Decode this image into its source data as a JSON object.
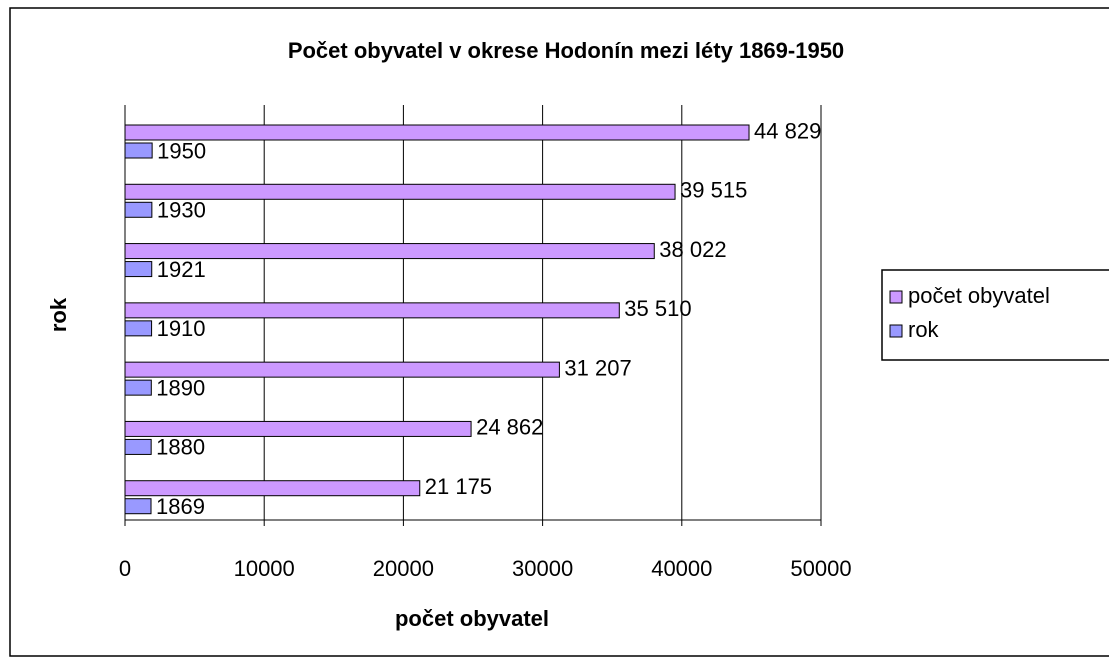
{
  "chart_data": {
    "type": "hbar",
    "title": "Počet obyvatel v okrese Hodonín mezi léty 1869-1950",
    "xlabel": "počet obyvatel",
    "ylabel": "rok",
    "categories": [
      null,
      null,
      null,
      null,
      null,
      null,
      null
    ],
    "series": [
      {
        "name": "počet obyvatel",
        "color": "#cc99ff",
        "values": [
          21175,
          24862,
          31207,
          35510,
          38022,
          39515,
          44829
        ],
        "value_labels": [
          "21 175",
          "24 862",
          "31 207",
          "35 510",
          "38 022",
          "39 515",
          "44 829"
        ]
      },
      {
        "name": "rok",
        "color": "#9999ff",
        "values": [
          1869,
          1880,
          1890,
          1910,
          1921,
          1930,
          1950
        ]
      }
    ],
    "xlim": [
      0,
      50000
    ],
    "xticks": [
      0,
      10000,
      20000,
      30000,
      40000,
      50000
    ],
    "grid": true,
    "legend": "right"
  }
}
